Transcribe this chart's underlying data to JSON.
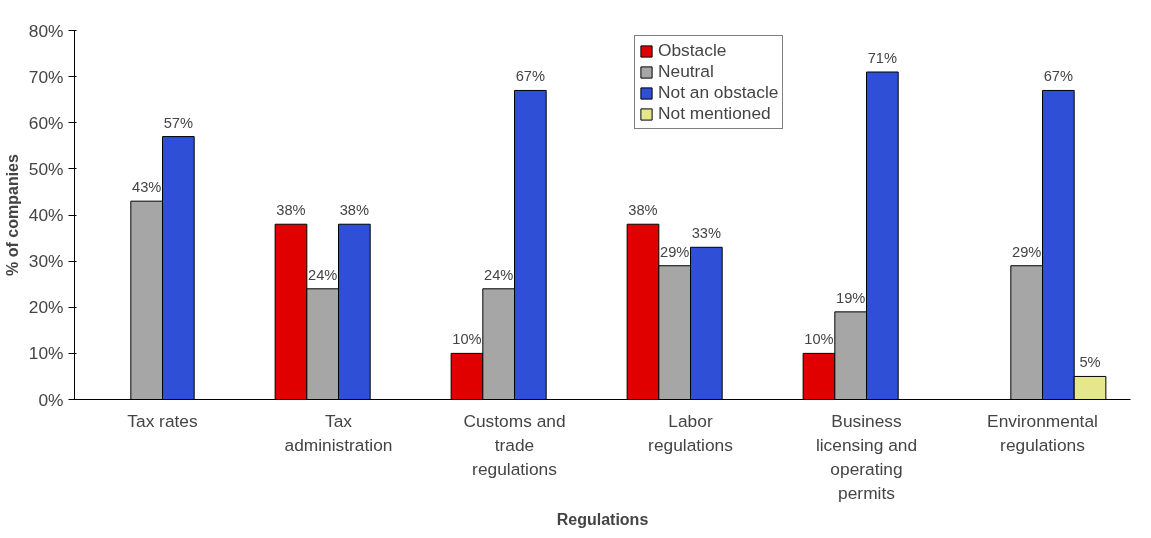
{
  "chart_data": {
    "type": "bar",
    "xlabel": "Regulations",
    "ylabel": "% of companies",
    "categories": [
      "Tax rates",
      "Tax\nadministration",
      "Customs and\ntrade\nregulations",
      "Labor\nregulations",
      "Business\nlicensing and\noperating\npermits",
      "Environmental\nregulations"
    ],
    "series": [
      {
        "name": "Obstacle",
        "color": "#e00000",
        "values": [
          null,
          38,
          10,
          38,
          10,
          null
        ],
        "value_labels": [
          null,
          "38%",
          "10%",
          "38%",
          "10%",
          null
        ]
      },
      {
        "name": "Neutral",
        "color": "#a6a6a6",
        "values": [
          43,
          24,
          24,
          29,
          19,
          29
        ],
        "value_labels": [
          "43%",
          "24%",
          "24%",
          "29%",
          "19%",
          "29%"
        ]
      },
      {
        "name": "Not an obstacle",
        "color": "#2f4fd6",
        "values": [
          57,
          38,
          67,
          33,
          71,
          67
        ],
        "value_labels": [
          "57%",
          "38%",
          "67%",
          "33%",
          "71%",
          "67%"
        ]
      },
      {
        "name": "Not mentioned",
        "color": "#e6e68c",
        "values": [
          null,
          null,
          null,
          null,
          null,
          5
        ],
        "value_labels": [
          null,
          null,
          null,
          null,
          null,
          "5%"
        ]
      }
    ],
    "ylim": [
      0,
      80
    ],
    "yticks": [
      {
        "value": 0,
        "label": "0%"
      },
      {
        "value": 10,
        "label": "10%"
      },
      {
        "value": 20,
        "label": "20%"
      },
      {
        "value": 30,
        "label": "30%"
      },
      {
        "value": 40,
        "label": "40%"
      },
      {
        "value": 50,
        "label": "50%"
      },
      {
        "value": 60,
        "label": "60%"
      },
      {
        "value": 70,
        "label": "70%"
      },
      {
        "value": 80,
        "label": "80%"
      }
    ],
    "grid": false,
    "legend": "top"
  }
}
